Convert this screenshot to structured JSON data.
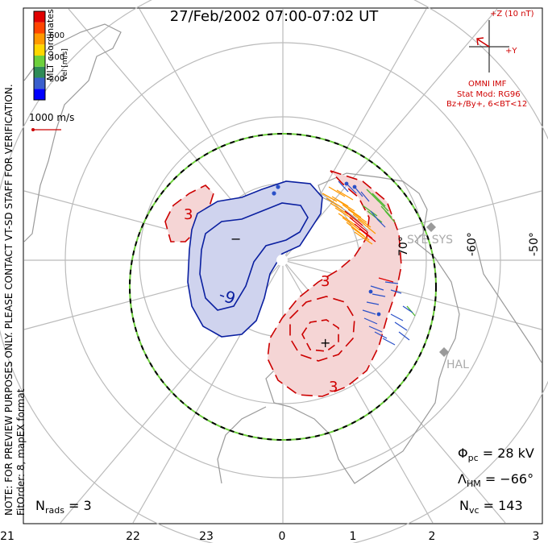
{
  "title": "27/Feb/2002 07:00-07:02 UT",
  "side_notes": {
    "preview": "NOTE: FOR PREVIEW PURPOSES ONLY. PLEASE CONTACT VT-SD STAFF FOR VERIFICATION.",
    "fit": "FitOrder: 8, mapEX format"
  },
  "legend": {
    "coords": "MLT coordinates",
    "vel_label": "Vel [m/s]",
    "ticks": [
      "600",
      "400",
      "200"
    ],
    "colors": [
      "#0000ff",
      "#3a5fcd",
      "#2e8b57",
      "#6dd03c",
      "#ffd700",
      "#ff9900",
      "#ff4500",
      "#e00000"
    ],
    "scale_label": "1000 m/s"
  },
  "imf": {
    "z_label": "+Z (10 nT)",
    "y_label": "+Y",
    "omni": "OMNI IMF",
    "stat_mod": "Stat Mod: RG96",
    "cond": "Bz+/By+, 6<BT<12"
  },
  "map_labels": {
    "lat_70": "70°",
    "lat_60": "-60°",
    "lat_50": "-50°",
    "site_sys": "SYE SYS",
    "site_hal": "HAL",
    "minus": "−",
    "plus": "+"
  },
  "contour_labels": {
    "neg": "-9",
    "pos_top": "3",
    "pos_mid": "3",
    "pos_bottom": "3"
  },
  "stats": {
    "phi_sym": "Φ",
    "phi_sub": "pc",
    "phi_val": "=  28 kV",
    "lam_sym": "Λ",
    "lam_sub": "HM",
    "lam_val": "=  −66°",
    "nvc_sym": "N",
    "nvc_sub": "vc",
    "nvc_val": "=  143",
    "nrads_sym": "N",
    "nrads_sub": "rads",
    "nrads_val": "=  3"
  },
  "x_ticks": [
    "21",
    "22",
    "23",
    "0",
    "1",
    "2",
    "3"
  ],
  "colors": {
    "contour_pos": "#cc0000",
    "contour_neg": "#0a1fa0",
    "fill_pos": "#f5d5d5",
    "fill_neg": "#cfd3ee",
    "grid": "#bbbbbb",
    "land": "#9a9a9a"
  }
}
